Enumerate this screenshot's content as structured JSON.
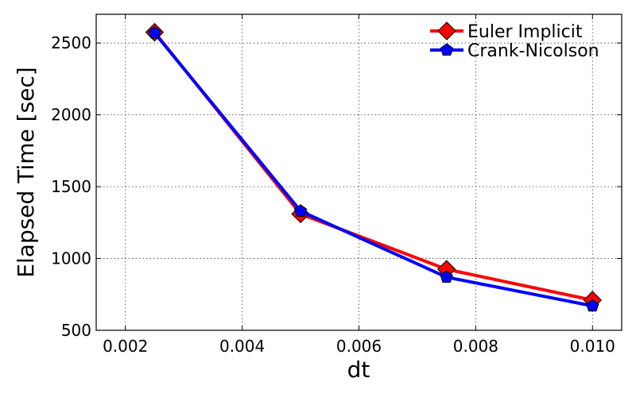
{
  "chart_data": {
    "type": "line",
    "title": "",
    "xlabel": "dt",
    "ylabel": "Elapsed Time [sec]",
    "xlim": [
      0.0015,
      0.0105
    ],
    "ylim": [
      500,
      2700
    ],
    "xticks": [
      0.002,
      0.004,
      0.006,
      0.008,
      0.01
    ],
    "xtick_labels": [
      "0.002",
      "0.004",
      "0.006",
      "0.008",
      "0.010"
    ],
    "yticks": [
      500,
      1000,
      1500,
      2000,
      2500
    ],
    "ytick_labels": [
      "500",
      "1000",
      "1500",
      "2000",
      "2500"
    ],
    "grid": true,
    "legend_position": "top-right",
    "x": [
      0.0025,
      0.005,
      0.0075,
      0.01
    ],
    "series": [
      {
        "name": "Euler Implicit",
        "values": [
          2575,
          1310,
          925,
          710
        ],
        "color": "#ff0000",
        "marker": "diamond"
      },
      {
        "name": "Crank-Nicolson",
        "values": [
          2570,
          1330,
          870,
          670
        ],
        "color": "#0000ff",
        "marker": "pentagon"
      }
    ]
  }
}
